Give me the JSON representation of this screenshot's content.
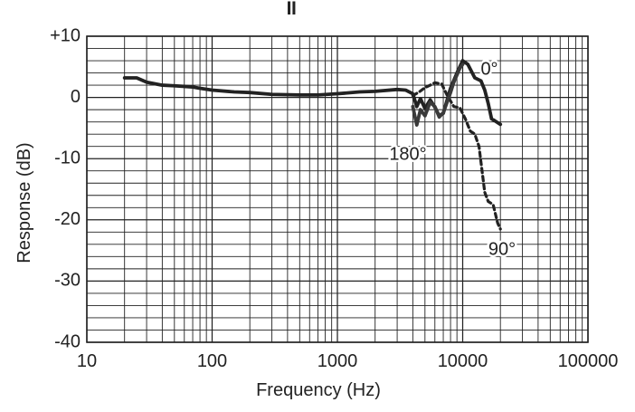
{
  "chart_data": {
    "type": "line",
    "title": "II",
    "xlabel": "Frequency (Hz)",
    "ylabel": "Response (dB)",
    "x_scale": "log",
    "xlim": [
      10,
      100000
    ],
    "ylim": [
      -40,
      10
    ],
    "x_ticks": [
      {
        "value": 10,
        "label": "10"
      },
      {
        "value": 100,
        "label": "100"
      },
      {
        "value": 1000,
        "label": "1000"
      },
      {
        "value": 10000,
        "label": "10000"
      },
      {
        "value": 100000,
        "label": "100000"
      }
    ],
    "y_ticks": [
      {
        "value": 10,
        "label": "+10"
      },
      {
        "value": 0,
        "label": "0"
      },
      {
        "value": -10,
        "label": "-10"
      },
      {
        "value": -20,
        "label": "-20"
      },
      {
        "value": -30,
        "label": "-30"
      },
      {
        "value": -40,
        "label": "-40"
      }
    ],
    "grid": true,
    "series": [
      {
        "name": "0°",
        "style": "solid",
        "color": "#222222",
        "points": [
          [
            20,
            3.2
          ],
          [
            25,
            3.2
          ],
          [
            30,
            2.5
          ],
          [
            40,
            2.0
          ],
          [
            50,
            1.9
          ],
          [
            60,
            1.8
          ],
          [
            70,
            1.7
          ],
          [
            80,
            1.5
          ],
          [
            100,
            1.2
          ],
          [
            150,
            0.9
          ],
          [
            200,
            0.8
          ],
          [
            300,
            0.5
          ],
          [
            500,
            0.4
          ],
          [
            700,
            0.4
          ],
          [
            1000,
            0.6
          ],
          [
            1500,
            0.9
          ],
          [
            2000,
            1.0
          ],
          [
            3000,
            1.3
          ],
          [
            3500,
            1.2
          ],
          [
            4000,
            0.6
          ],
          [
            4300,
            -1.5
          ],
          [
            4600,
            -0.2
          ],
          [
            5000,
            -1.8
          ],
          [
            5500,
            -0.4
          ],
          [
            6000,
            -1.6
          ],
          [
            6500,
            -3.0
          ],
          [
            7000,
            -2.6
          ],
          [
            8000,
            1.5
          ],
          [
            9000,
            4.0
          ],
          [
            10000,
            6.0
          ],
          [
            11000,
            5.4
          ],
          [
            12500,
            3.2
          ],
          [
            14000,
            2.7
          ],
          [
            15000,
            1.2
          ],
          [
            16000,
            -1.0
          ],
          [
            17000,
            -3.5
          ],
          [
            18000,
            -3.8
          ],
          [
            20000,
            -4.4
          ]
        ]
      },
      {
        "name": "90°",
        "style": "dashed",
        "color": "#222222",
        "points": [
          [
            4000,
            0.3
          ],
          [
            4500,
            0.9
          ],
          [
            5000,
            1.6
          ],
          [
            5500,
            2.0
          ],
          [
            6000,
            2.4
          ],
          [
            6800,
            2.2
          ],
          [
            7500,
            0.4
          ],
          [
            8500,
            -1.5
          ],
          [
            9500,
            -1.7
          ],
          [
            10500,
            -3.5
          ],
          [
            11500,
            -5.5
          ],
          [
            12500,
            -6.0
          ],
          [
            13500,
            -8.0
          ],
          [
            15000,
            -15.5
          ],
          [
            16000,
            -17.0
          ],
          [
            17500,
            -17.5
          ],
          [
            19000,
            -20.5
          ],
          [
            20000,
            -21.5
          ]
        ]
      },
      {
        "name": "180°",
        "style": "solid",
        "color": "#3a3a3a",
        "points": [
          [
            4000,
            -1.5
          ],
          [
            4300,
            -4.5
          ],
          [
            4600,
            -2.0
          ],
          [
            5000,
            -3.0
          ],
          [
            5500,
            -0.8
          ],
          [
            6000,
            -1.5
          ],
          [
            6500,
            -3.2
          ],
          [
            7000,
            -2.5
          ],
          [
            7500,
            -0.8
          ],
          [
            8000,
            0.8
          ],
          [
            8500,
            2.5
          ],
          [
            9500,
            4.8
          ],
          [
            10000,
            5.4
          ]
        ]
      }
    ],
    "annotations": [
      {
        "text": "0°",
        "series": "0°"
      },
      {
        "text": "90°",
        "series": "90°"
      },
      {
        "text": "180°",
        "series": "180°"
      }
    ]
  }
}
